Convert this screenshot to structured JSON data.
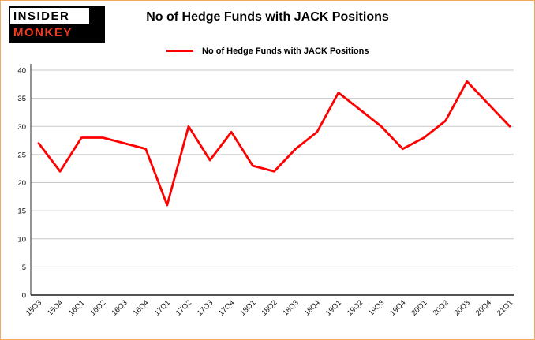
{
  "logo": {
    "line1": "INSIDER",
    "line2": "MONKEY"
  },
  "title": "No of Hedge Funds with JACK Positions",
  "legend": {
    "label": "No of Hedge Funds with JACK Positions"
  },
  "colors": {
    "series": "#ff0000",
    "grid": "#c8c8c8",
    "axis_left": "#4d4d4d",
    "axis_bottom": "#1a1a1a",
    "frame_border": "#f0a95e",
    "logo_accent": "#ef3b24"
  },
  "chart_data": {
    "type": "line",
    "title": "No of Hedge Funds with JACK Positions",
    "xlabel": "",
    "ylabel": "",
    "categories": [
      "15Q3",
      "15Q4",
      "16Q1",
      "16Q2",
      "16Q3",
      "16Q4",
      "17Q1",
      "17Q2",
      "17Q3",
      "17Q4",
      "18Q1",
      "18Q2",
      "18Q3",
      "18Q4",
      "19Q1",
      "19Q2",
      "19Q3",
      "19Q4",
      "20Q1",
      "20Q2",
      "20Q3",
      "20Q4",
      "21Q1"
    ],
    "series": [
      {
        "name": "No of Hedge Funds with JACK Positions",
        "values": [
          27,
          22,
          28,
          28,
          27,
          26,
          16,
          30,
          24,
          29,
          23,
          22,
          26,
          29,
          36,
          33,
          30,
          26,
          28,
          31,
          38,
          34,
          30
        ]
      }
    ],
    "ylim": [
      0,
      40
    ],
    "yticks": [
      0,
      5,
      10,
      15,
      20,
      25,
      30,
      35,
      40
    ],
    "grid": true,
    "legend_position": "top-center",
    "line_color": "#ff0000"
  }
}
